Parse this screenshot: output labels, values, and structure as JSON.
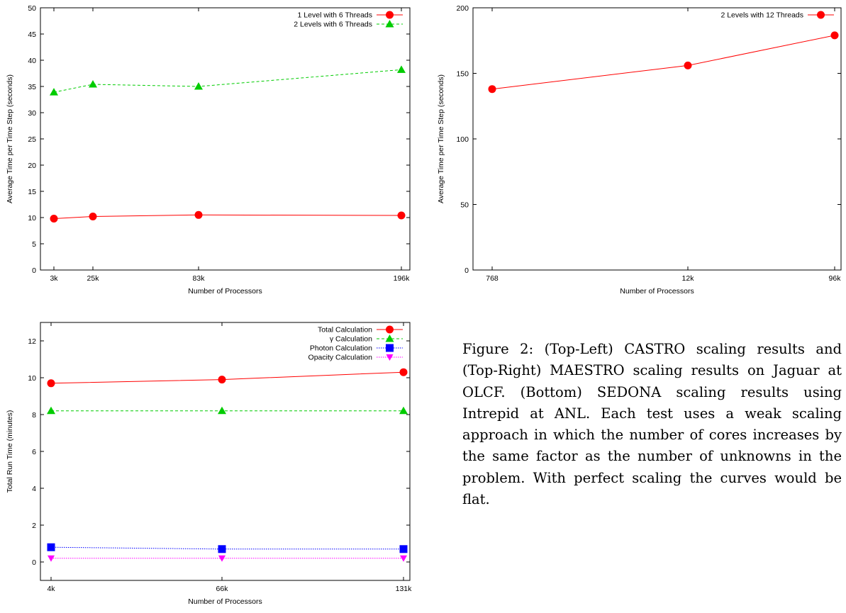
{
  "chart_data": [
    {
      "id": "top-left",
      "type": "line",
      "xlabel": "Number of Processors",
      "ylabel": "Average Time per Time Step (seconds)",
      "categories": [
        "3k",
        "25k",
        "83k",
        "196k"
      ],
      "x": [
        3,
        25,
        83,
        196
      ],
      "ylim": [
        0,
        50
      ],
      "yticks": [
        0,
        5,
        10,
        15,
        20,
        25,
        30,
        35,
        40,
        45,
        50
      ],
      "grid": false,
      "legend": "top-right",
      "series": [
        {
          "name": "1 Level with 6 Threads",
          "values": [
            9.8,
            10.2,
            10.5,
            10.4
          ],
          "color": "#ff0000",
          "marker": "circle",
          "dash": "solid"
        },
        {
          "name": "2 Levels with 6 Threads",
          "values": [
            33.9,
            35.4,
            35.0,
            38.2
          ],
          "color": "#00cc00",
          "marker": "triangle",
          "dash": "dashed"
        }
      ]
    },
    {
      "id": "top-right",
      "type": "line",
      "xlabel": "Number of Processors",
      "ylabel": "Average Time per Time Step (seconds)",
      "categories": [
        "768",
        "12k",
        "96k"
      ],
      "x": [
        768,
        12000,
        96000
      ],
      "ylim": [
        0,
        200
      ],
      "yticks": [
        0,
        50,
        100,
        150,
        200
      ],
      "grid": false,
      "legend": "top-right",
      "series": [
        {
          "name": "2 Levels with 12 Threads",
          "values": [
            138,
            156,
            179
          ],
          "color": "#ff0000",
          "marker": "circle",
          "dash": "solid"
        }
      ]
    },
    {
      "id": "bottom",
      "type": "line",
      "xlabel": "Number of Processors",
      "ylabel": "Total Run Time (minutes)",
      "categories": [
        "4k",
        "66k",
        "131k"
      ],
      "x": [
        4,
        66,
        131
      ],
      "ylim": [
        -1,
        13
      ],
      "yticks": [
        0,
        2,
        4,
        6,
        8,
        10,
        12
      ],
      "grid": false,
      "legend": "top-right",
      "series": [
        {
          "name": "Total Calculation",
          "values": [
            9.7,
            9.9,
            10.3
          ],
          "color": "#ff0000",
          "marker": "circle",
          "dash": "solid"
        },
        {
          "name": "γ Calculation",
          "values": [
            8.2,
            8.2,
            8.2
          ],
          "color": "#00cc00",
          "marker": "triangle",
          "dash": "dashed"
        },
        {
          "name": "Photon Calculation",
          "values": [
            0.8,
            0.7,
            0.7
          ],
          "color": "#0000ff",
          "marker": "square",
          "dash": "dotted"
        },
        {
          "name": "Opacity Calculation",
          "values": [
            0.2,
            0.2,
            0.2
          ],
          "color": "#ff00ff",
          "marker": "triangle-down",
          "dash": "dotted"
        }
      ]
    }
  ],
  "caption": "Figure 2: (Top-Left) CASTRO scaling results and (Top-Right) MAESTRO scaling results on Jaguar at OLCF. (Bottom) SEDONA scaling results using Intrepid at ANL. Each test uses a weak scaling approach in which the number of cores increases by the same factor as the number of unknowns in the problem. With perfect scaling the curves would be flat."
}
